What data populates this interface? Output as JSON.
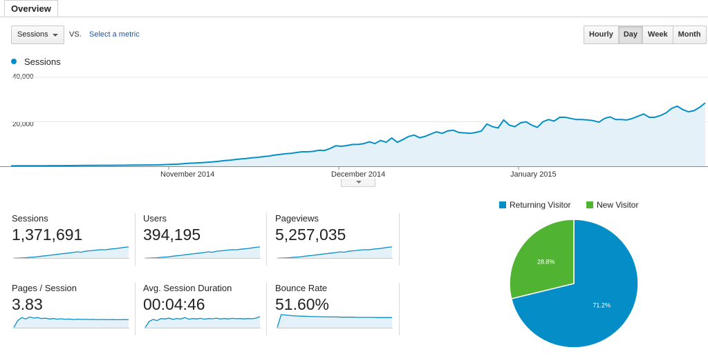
{
  "tabs": {
    "overview": "Overview"
  },
  "toolbar": {
    "metric": "Sessions",
    "vs": "VS.",
    "select_metric": "Select a metric",
    "granularity": [
      "Hourly",
      "Day",
      "Week",
      "Month"
    ],
    "active_granularity": "Day"
  },
  "chart": {
    "legend": "Sessions",
    "y_ticks": [
      "40,000",
      "20,000"
    ],
    "x_ticks": [
      "November 2014",
      "December 2014",
      "January 2015"
    ],
    "series_color": "#058dc7"
  },
  "chart_data": {
    "type": "area",
    "series": [
      {
        "name": "Sessions",
        "values": [
          200,
          210,
          220,
          230,
          240,
          250,
          260,
          270,
          280,
          290,
          300,
          320,
          350,
          370,
          390,
          400,
          420,
          430,
          440,
          460,
          480,
          500,
          520,
          550,
          580,
          600,
          620,
          700,
          800,
          900,
          1000,
          1200,
          1400,
          1500,
          1600,
          1800,
          2000,
          2200,
          2500,
          2700,
          3000,
          3300,
          3500,
          3800,
          4000,
          4300,
          4600,
          5000,
          5300,
          5600,
          5800,
          6200,
          6500,
          6500,
          6700,
          7200,
          7100,
          8000,
          9200,
          9000,
          9300,
          9800,
          9800,
          10200,
          11000,
          10200,
          11600,
          10800,
          12700,
          10800,
          12000,
          13400,
          14000,
          12800,
          13500,
          14500,
          15500,
          14800,
          15900,
          16200,
          15200,
          15000,
          14800,
          15200,
          15800,
          19000,
          17800,
          17200,
          20800,
          18500,
          17800,
          19500,
          20000,
          18500,
          17500,
          20000,
          21000,
          20300,
          22000,
          22000,
          21500,
          21000,
          21000,
          20800,
          20500,
          19800,
          21500,
          22200,
          21000,
          21000,
          20800,
          21500,
          22500,
          23500,
          22000,
          22000,
          22800,
          24000,
          26000,
          27000,
          25500,
          24500,
          25000,
          26500,
          28500
        ]
      }
    ],
    "ylim": [
      0,
      40000
    ],
    "x_ticks": [
      "November 2014",
      "December 2014",
      "January 2015"
    ],
    "ylabel": "",
    "xlabel": ""
  },
  "scorecards": [
    {
      "label": "Sessions",
      "value": "1,371,691",
      "trend": [
        2,
        3,
        4,
        5,
        7,
        8,
        10,
        13,
        15,
        17,
        20,
        22,
        25,
        27,
        29,
        32,
        35,
        33,
        38,
        40,
        42,
        44,
        46,
        45,
        48,
        50,
        52,
        55,
        58,
        60
      ]
    },
    {
      "label": "Users",
      "value": "394,195",
      "trend": [
        2,
        3,
        4,
        5,
        7,
        8,
        10,
        13,
        15,
        17,
        20,
        22,
        25,
        27,
        29,
        32,
        35,
        33,
        38,
        40,
        42,
        44,
        46,
        45,
        48,
        50,
        52,
        55,
        58,
        60
      ]
    },
    {
      "label": "Pageviews",
      "value": "5,257,035",
      "trend": [
        2,
        3,
        4,
        5,
        7,
        8,
        10,
        13,
        15,
        17,
        20,
        22,
        25,
        27,
        29,
        32,
        35,
        33,
        38,
        40,
        42,
        44,
        46,
        45,
        48,
        50,
        52,
        55,
        58,
        60
      ]
    },
    {
      "label": "Pages / Session",
      "value": "3.83",
      "trend": [
        5,
        40,
        55,
        48,
        58,
        52,
        55,
        50,
        52,
        48,
        50,
        47,
        49,
        46,
        48,
        45,
        47,
        46,
        46,
        45,
        46,
        44,
        45,
        45,
        44,
        45,
        44,
        44,
        45,
        44
      ]
    },
    {
      "label": "Avg. Session Duration",
      "value": "00:04:46",
      "trend": [
        5,
        35,
        45,
        40,
        50,
        48,
        52,
        46,
        50,
        48,
        55,
        47,
        50,
        48,
        51,
        47,
        50,
        49,
        52,
        48,
        50,
        48,
        51,
        49,
        50,
        48,
        50,
        49,
        52,
        60
      ]
    },
    {
      "label": "Bounce Rate",
      "value": "51.60%",
      "trend": [
        5,
        70,
        68,
        66,
        64,
        63,
        62,
        62,
        61,
        60,
        60,
        59,
        59,
        58,
        58,
        58,
        57,
        57,
        57,
        57,
        56,
        56,
        56,
        56,
        56,
        55,
        55,
        55,
        55,
        55
      ]
    }
  ],
  "pie": {
    "legend": [
      "Returning Visitor",
      "New Visitor"
    ],
    "colors": [
      "#058dc7",
      "#50b432"
    ],
    "values": [
      71.2,
      28.8
    ],
    "labels": [
      "71.2%",
      "28.8%"
    ]
  }
}
